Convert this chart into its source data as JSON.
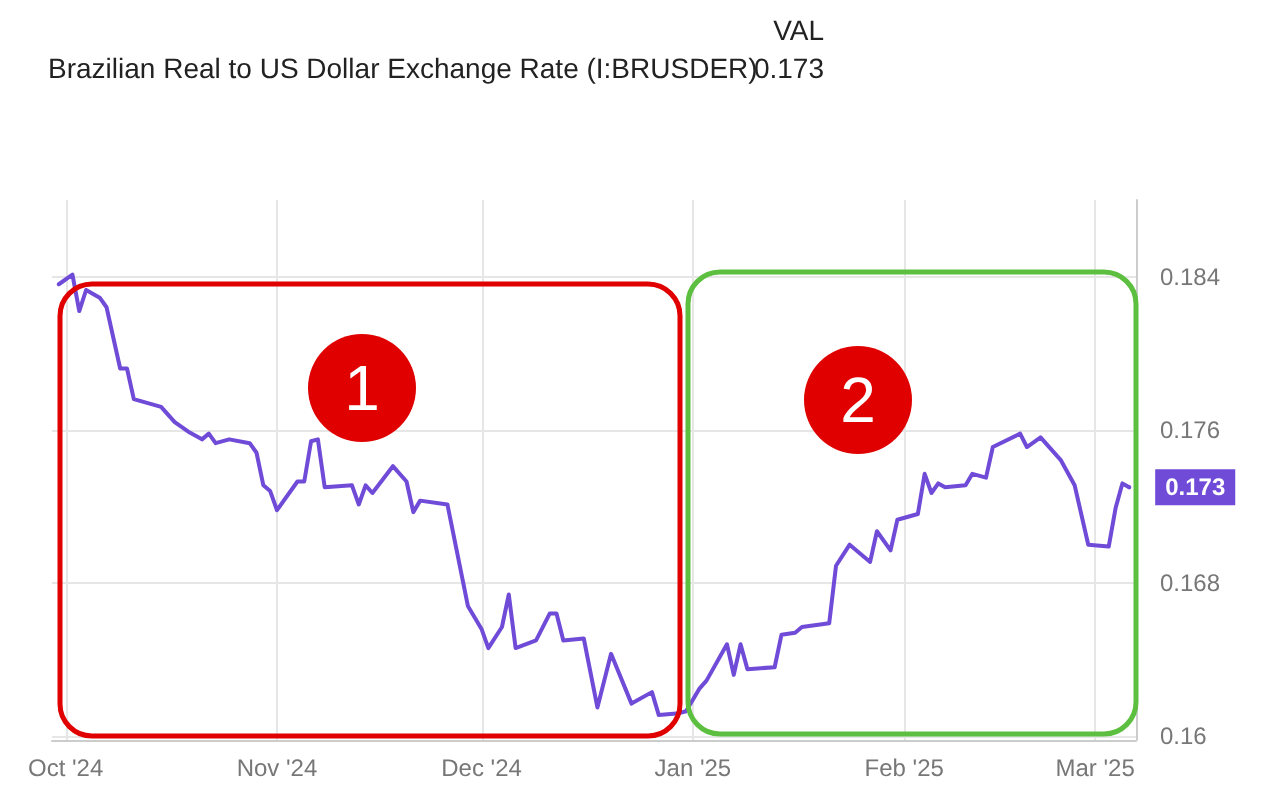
{
  "chart_data": {
    "type": "line",
    "title": "Brazilian Real to US Dollar Exchange Rate (I:BRUSDER)",
    "annotations": [
      "VAL",
      "0.173",
      "1",
      "2"
    ],
    "x": [
      "2024-09-30",
      "2024-10-02",
      "2024-10-03",
      "2024-10-04",
      "2024-10-06",
      "2024-10-07",
      "2024-10-09",
      "2024-10-10",
      "2024-10-11",
      "2024-10-15",
      "2024-10-17",
      "2024-10-19",
      "2024-10-21",
      "2024-10-22",
      "2024-10-23",
      "2024-10-25",
      "2024-10-28",
      "2024-10-29",
      "2024-10-30",
      "2024-10-31",
      "2024-11-01",
      "2024-11-04",
      "2024-11-05",
      "2024-11-06",
      "2024-11-07",
      "2024-11-08",
      "2024-11-12",
      "2024-11-13",
      "2024-11-14",
      "2024-11-15",
      "2024-11-18",
      "2024-11-20",
      "2024-11-21",
      "2024-11-22",
      "2024-11-26",
      "2024-11-29",
      "2024-12-01",
      "2024-12-02",
      "2024-12-04",
      "2024-12-05",
      "2024-12-06",
      "2024-12-09",
      "2024-12-11",
      "2024-12-12",
      "2024-12-13",
      "2024-12-16",
      "2024-12-18",
      "2024-12-20",
      "2024-12-23",
      "2024-12-26",
      "2024-12-27",
      "2024-12-30",
      "2024-12-31",
      "2025-01-02",
      "2025-01-03",
      "2025-01-06",
      "2025-01-07",
      "2025-01-08",
      "2025-01-09",
      "2025-01-13",
      "2025-01-14",
      "2025-01-16",
      "2025-01-17",
      "2025-01-21",
      "2025-01-22",
      "2025-01-24",
      "2025-01-27",
      "2025-01-28",
      "2025-01-30",
      "2025-01-31",
      "2025-02-03",
      "2025-02-04",
      "2025-02-05",
      "2025-02-06",
      "2025-02-07",
      "2025-02-10",
      "2025-02-11",
      "2025-02-13",
      "2025-02-14",
      "2025-02-18",
      "2025-02-19",
      "2025-02-21",
      "2025-02-24",
      "2025-02-26",
      "2025-02-28",
      "2025-03-03",
      "2025-03-04",
      "2025-03-05",
      "2025-03-06"
    ],
    "series": [
      {
        "color": "#6f4bd8",
        "values": [
          0.1836,
          0.1841,
          0.1822,
          0.1833,
          0.1829,
          0.1824,
          0.1792,
          0.1792,
          0.1776,
          0.1772,
          0.1764,
          0.1759,
          0.1755,
          0.1758,
          0.1753,
          0.1755,
          0.1753,
          0.1748,
          0.1731,
          0.1728,
          0.1718,
          0.1733,
          0.1733,
          0.1754,
          0.1755,
          0.173,
          0.1731,
          0.1721,
          0.1731,
          0.1727,
          0.1741,
          0.1733,
          0.1717,
          0.1723,
          0.1721,
          0.1668,
          0.1656,
          0.1646,
          0.1657,
          0.1674,
          0.1646,
          0.165,
          0.1664,
          0.1664,
          0.165,
          0.1651,
          0.1615,
          0.1643,
          0.1617,
          0.1623,
          0.1611,
          0.1612,
          0.1613,
          0.1625,
          0.1629,
          0.1648,
          0.1632,
          0.1648,
          0.1635,
          0.1636,
          0.1653,
          0.1654,
          0.1657,
          0.1659,
          0.1689,
          0.17,
          0.1691,
          0.1707,
          0.1697,
          0.1713,
          0.1716,
          0.1737,
          0.1727,
          0.1732,
          0.173,
          0.1731,
          0.1737,
          0.1735,
          0.1751,
          0.1758,
          0.1751,
          0.1756,
          0.1744,
          0.1731,
          0.17,
          0.1699,
          0.1719,
          0.1732,
          0.173
        ],
        "value_labels": [
          null,
          null,
          null,
          null,
          null,
          null,
          null,
          null,
          null,
          null,
          null,
          null,
          null,
          null,
          null,
          null,
          null,
          null,
          null,
          null,
          null,
          null,
          null,
          null,
          null,
          null,
          null,
          null,
          null,
          null,
          null,
          null,
          null,
          null,
          null,
          null,
          null,
          null,
          null,
          null,
          null,
          null,
          null,
          null,
          null,
          null,
          null,
          null,
          null,
          null,
          null,
          null,
          null,
          null,
          null,
          null,
          null,
          null,
          null,
          null,
          null,
          null,
          null,
          null,
          null,
          null,
          null,
          null,
          null,
          null,
          null,
          null,
          null,
          null,
          null,
          null,
          null,
          null,
          null,
          null,
          null,
          null,
          null,
          null,
          null,
          null,
          null,
          null,
          "0.173"
        ]
      }
    ],
    "xlim": [
      "2024-09-29",
      "2025-03-07"
    ],
    "xticks": [
      {
        "value": "2024-10-01",
        "label": "Oct '24"
      },
      {
        "value": "2024-11-01",
        "label": "Nov '24"
      },
      {
        "value": "2024-12-01",
        "label": "Dec '24"
      },
      {
        "value": "2025-01-01",
        "label": "Jan '25"
      },
      {
        "value": "2025-02-01",
        "label": "Feb '25"
      },
      {
        "value": "2025-03-01",
        "label": "Mar '25"
      }
    ],
    "ylim": [
      0.1598,
      0.188
    ],
    "yticks": [
      0.16,
      0.168,
      0.176,
      0.184
    ],
    "grid": true,
    "marker": "none",
    "line_style": "solid"
  }
}
